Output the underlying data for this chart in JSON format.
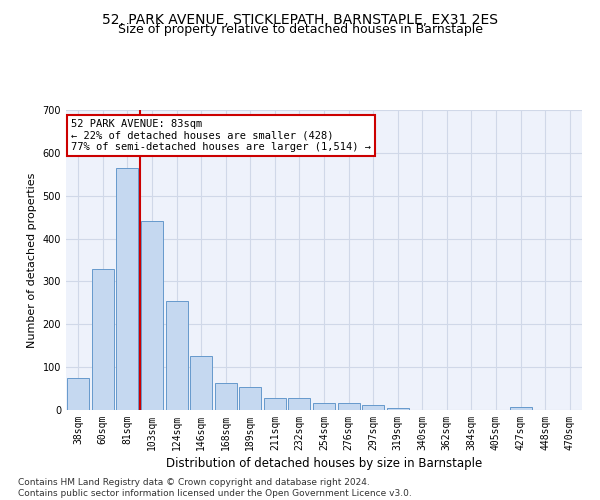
{
  "title1": "52, PARK AVENUE, STICKLEPATH, BARNSTAPLE, EX31 2ES",
  "title2": "Size of property relative to detached houses in Barnstaple",
  "xlabel": "Distribution of detached houses by size in Barnstaple",
  "ylabel": "Number of detached properties",
  "categories": [
    "38sqm",
    "60sqm",
    "81sqm",
    "103sqm",
    "124sqm",
    "146sqm",
    "168sqm",
    "189sqm",
    "211sqm",
    "232sqm",
    "254sqm",
    "276sqm",
    "297sqm",
    "319sqm",
    "340sqm",
    "362sqm",
    "384sqm",
    "405sqm",
    "427sqm",
    "448sqm",
    "470sqm"
  ],
  "values": [
    75,
    330,
    565,
    440,
    255,
    125,
    63,
    53,
    28,
    28,
    16,
    16,
    12,
    5,
    0,
    0,
    0,
    0,
    7,
    0,
    0
  ],
  "bar_color": "#c5d8f0",
  "bar_edge_color": "#6699cc",
  "vline_color": "#cc0000",
  "annotation_text": "52 PARK AVENUE: 83sqm\n← 22% of detached houses are smaller (428)\n77% of semi-detached houses are larger (1,514) →",
  "annotation_box_color": "#ffffff",
  "annotation_box_edge": "#cc0000",
  "ylim": [
    0,
    700
  ],
  "yticks": [
    0,
    100,
    200,
    300,
    400,
    500,
    600,
    700
  ],
  "footer": "Contains HM Land Registry data © Crown copyright and database right 2024.\nContains public sector information licensed under the Open Government Licence v3.0.",
  "bg_color": "#eef2fb",
  "grid_color": "#d0d8e8",
  "title1_fontsize": 10,
  "title2_fontsize": 9,
  "xlabel_fontsize": 8.5,
  "ylabel_fontsize": 8,
  "tick_fontsize": 7,
  "footer_fontsize": 6.5,
  "ann_fontsize": 7.5
}
